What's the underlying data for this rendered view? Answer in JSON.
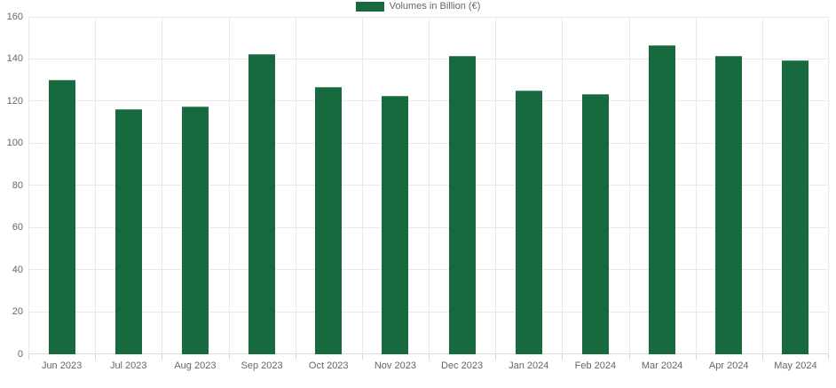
{
  "chart_data": {
    "type": "bar",
    "title": "",
    "xlabel": "",
    "ylabel": "",
    "categories": [
      "Jun 2023",
      "Jul 2023",
      "Aug 2023",
      "Sep 2023",
      "Oct 2023",
      "Nov 2023",
      "Dec 2023",
      "Jan 2024",
      "Feb 2024",
      "Mar 2024",
      "Apr 2024",
      "May 2024"
    ],
    "series": [
      {
        "name": "Volumes in Billion (€)",
        "color": "#17693E",
        "values": [
          129.5,
          116,
          117,
          142,
          126.5,
          122,
          141,
          124.5,
          123,
          146,
          141,
          139
        ]
      }
    ],
    "ylim": [
      0,
      160
    ],
    "yticks": [
      0,
      20,
      40,
      60,
      80,
      100,
      120,
      140,
      160
    ],
    "grid": true,
    "legend": {
      "position": "top-center",
      "label": "Volumes in Billion (€)"
    }
  },
  "colors": {
    "bar": "#17693E",
    "grid_line": "#e9e9e9",
    "axis_line": "#dcdcdc",
    "tick_text": "#666666",
    "background": "#ffffff"
  }
}
